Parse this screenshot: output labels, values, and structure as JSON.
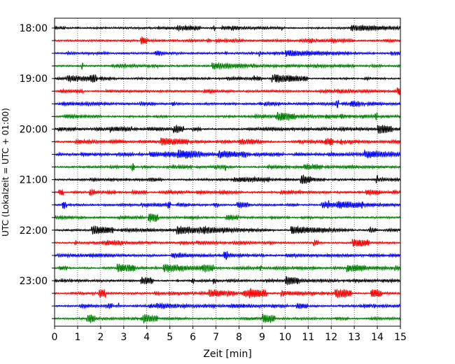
{
  "chart_data": {
    "type": "line",
    "title": "",
    "xlabel": "Zeit  [min]",
    "ylabel": "UTC (Lokalzeit = UTC + 01:00)",
    "xlim": [
      0,
      15
    ],
    "x_ticks": [
      "0",
      "1",
      "2",
      "3",
      "4",
      "5",
      "6",
      "7",
      "8",
      "9",
      "10",
      "11",
      "12",
      "13",
      "14",
      "15"
    ],
    "y_tick_labels": [
      "18:00",
      "19:00",
      "20:00",
      "21:00",
      "22:00",
      "23:00"
    ],
    "trace_interval_minutes": 15,
    "first_trace": "18:00",
    "trace_count": 24,
    "trace_colors": [
      "#000000",
      "#ff0000",
      "#0000ff",
      "#008000"
    ],
    "grid": "vertical dotted lines at each minute",
    "legend": "none"
  }
}
